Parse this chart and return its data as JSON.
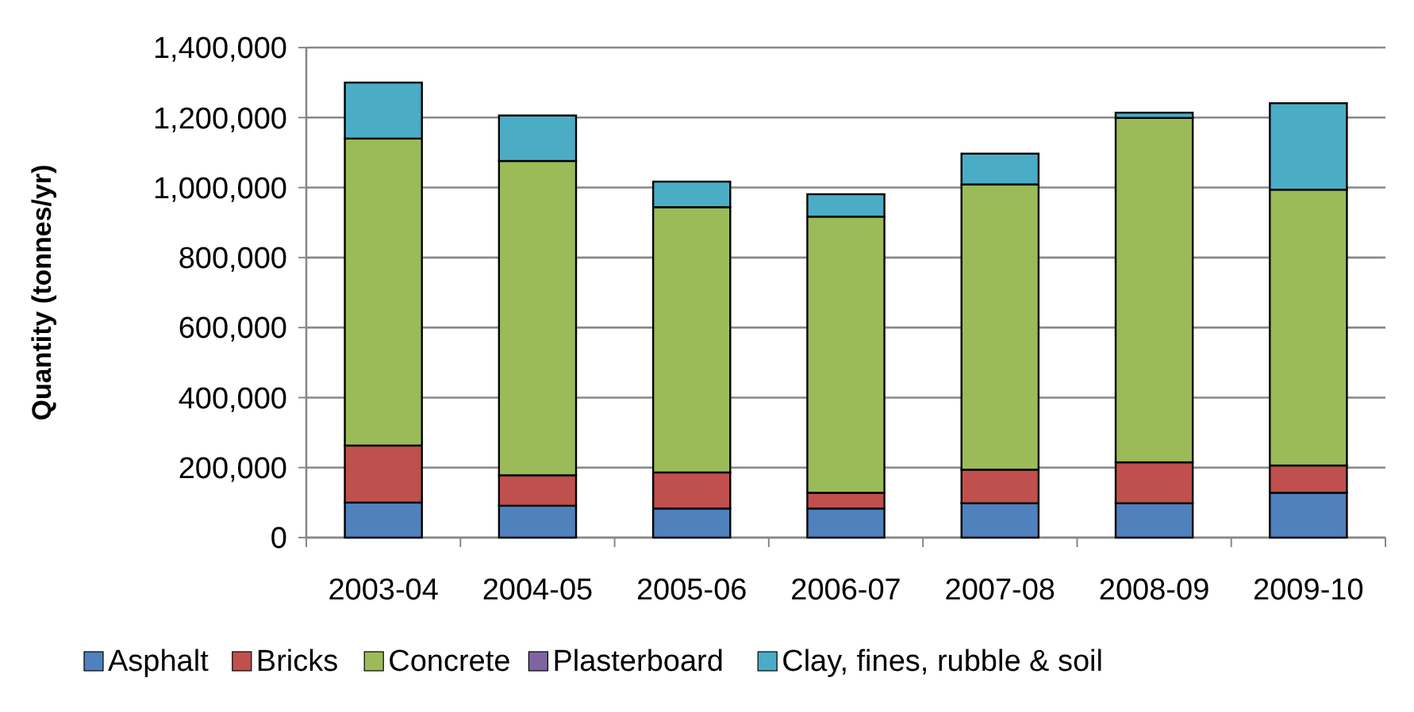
{
  "chart_data": {
    "type": "bar",
    "stacked": true,
    "ylabel": "Quantity (tonnes/yr)",
    "categories": [
      "2003-04",
      "2004-05",
      "2005-06",
      "2006-07",
      "2007-08",
      "2008-09",
      "2009-10"
    ],
    "series": [
      {
        "name": "Asphalt",
        "color": "#4f81bd",
        "values": [
          100000,
          91000,
          83000,
          83000,
          98000,
          98000,
          128000
        ]
      },
      {
        "name": "Bricks",
        "color": "#c0504d",
        "values": [
          163000,
          87000,
          103000,
          45000,
          96000,
          117000,
          78000
        ]
      },
      {
        "name": "Concrete",
        "color": "#9bbb59",
        "values": [
          877000,
          898000,
          758000,
          789000,
          815000,
          984000,
          788000
        ]
      },
      {
        "name": "Plasterboard",
        "color": "#8064a2",
        "values": [
          0,
          0,
          0,
          0,
          0,
          0,
          0
        ]
      },
      {
        "name": "Clay, fines, rubble & soil",
        "color": "#4bacc6",
        "values": [
          160000,
          130000,
          73000,
          64000,
          88000,
          15000,
          247000
        ]
      }
    ],
    "ylim": [
      0,
      1400000
    ],
    "yticks": [
      {
        "value": 0,
        "label": "0"
      },
      {
        "value": 200000,
        "label": "200,000"
      },
      {
        "value": 400000,
        "label": "400,000"
      },
      {
        "value": 600000,
        "label": "600,000"
      },
      {
        "value": 800000,
        "label": "800,000"
      },
      {
        "value": 1000000,
        "label": "1,000,000"
      },
      {
        "value": 1200000,
        "label": "1,200,000"
      },
      {
        "value": 1400000,
        "label": "1,400,000"
      }
    ],
    "grid": "y",
    "legend": "bottom"
  }
}
